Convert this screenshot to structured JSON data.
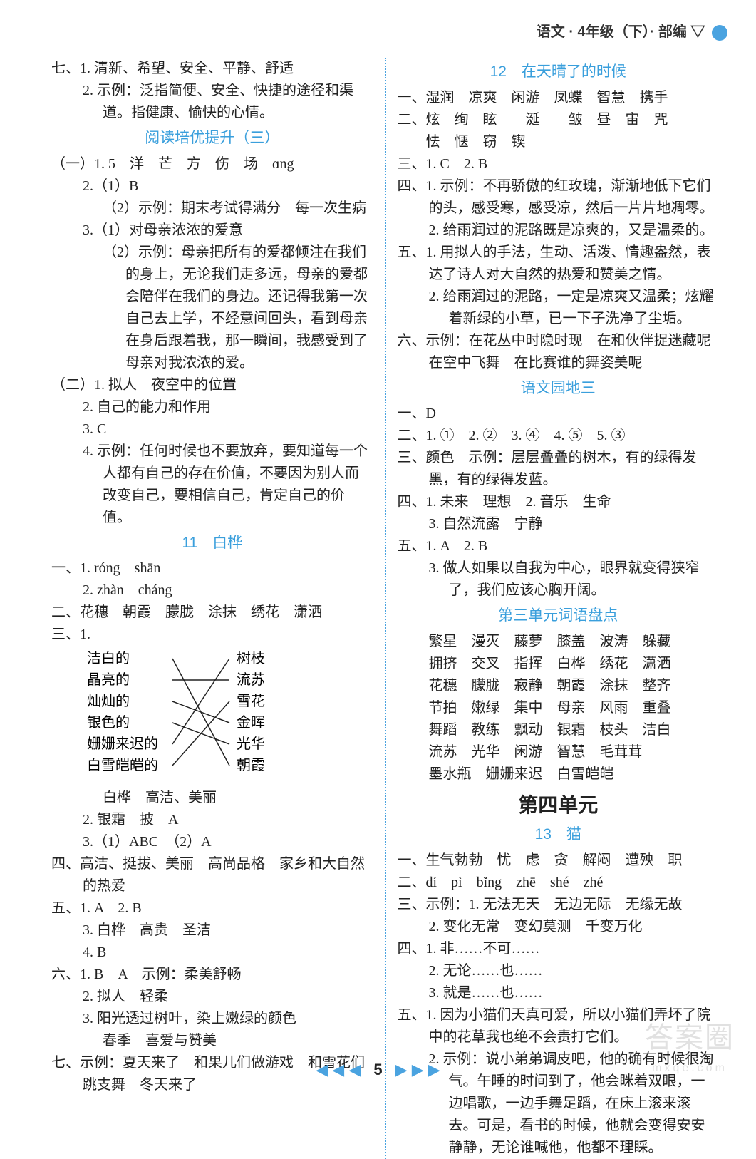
{
  "header": {
    "text": "语文 · 4年级（下）· 部编 ▽"
  },
  "footer": {
    "left": "◀ ◀ ◀",
    "page": "5",
    "right": "▶ ▶ ▶"
  },
  "watermark": {
    "main": "答案圈",
    "sub": "mxqe.com"
  },
  "left": {
    "l1": "七、1. 清新、希望、安全、平静、舒适",
    "l2": "2. 示例：泛指简便、安全、快捷的途径和渠道。指健康、愉快的心情。",
    "t1": "阅读培优提升（三）",
    "l3": "（一）1. 5　洋　芒　方　伤　场　ɑng",
    "l4": "2.（1）B",
    "l5": "（2）示例：期末考试得满分　每一次生病",
    "l6": "3.（1）对母亲浓浓的爱意",
    "l7": "（2）示例：母亲把所有的爱都倾注在我们的身上，无论我们走多远，母亲的爱都会陪伴在我们的身边。还记得我第一次自己去上学，不经意间回头，看到母亲在身后跟着我，那一瞬间，我感受到了母亲对我浓浓的爱。",
    "l8": "（二）1. 拟人　夜空中的位置",
    "l9": "2. 自己的能力和作用",
    "l10": "3. C",
    "l11": "4. 示例：任何时候也不要放弃，要知道每一个人都有自己的存在价值，不要因为别人而改变自己，要相信自己，肯定自己的价值。",
    "t2": "11　白桦",
    "l12": "一、1. róng　shān",
    "l13": "2. zhàn　cháng",
    "l14": "二、花穗　朝霞　朦胧　涂抹　绣花　潇洒",
    "match": {
      "left": [
        "洁白的",
        "晶亮的",
        "灿灿的",
        "银色的",
        "姗姗来迟的",
        "白雪皑皑的"
      ],
      "right": [
        "树枝",
        "流苏",
        "雪花",
        "金晖",
        "光华",
        "朝霞"
      ],
      "edges": [
        [
          0,
          5
        ],
        [
          1,
          1
        ],
        [
          2,
          3
        ],
        [
          3,
          4
        ],
        [
          4,
          0
        ],
        [
          5,
          2
        ]
      ],
      "stroke": "#222222"
    },
    "l15": "三、1.",
    "l16": "白桦　高洁、美丽",
    "l17": "2. 银霜　披　A",
    "l18": "3.（1）ABC　（2）A",
    "l19": "四、高洁、挺拔、美丽　高尚品格　家乡和大自然的热爱",
    "l20": "五、1. A　2. B",
    "l21": "3. 白桦　高贵　圣洁",
    "l22": "4. B",
    "l23": "六、1. B　A　示例：柔美舒畅",
    "l24": "2. 拟人　轻柔",
    "l25": "3. 阳光透过树叶，染上嫩绿的颜色",
    "l26": "春季　喜爱与赞美",
    "l27": "七、示例：夏天来了　和果儿们做游戏　和雪花们跳支舞　冬天来了"
  },
  "right": {
    "t1": "12　在天晴了的时候",
    "r1": "一、湿润　凉爽　闲游　凤蝶　智慧　携手",
    "r2": "二、炫　绚　眩　　涎　　皱　昼　宙　咒",
    "r2b": "　　怯　惬　窃　锲",
    "r3": "三、1. C　2. B",
    "r4": "四、1. 示例：不再骄傲的红玫瑰，渐渐地低下它们的头，感受寒，感受凉，然后一片片地凋零。",
    "r5": "2. 给雨润过的泥路既是凉爽的，又是温柔的。",
    "r6": "五、1. 用拟人的手法，生动、活泼、情趣盎然，表达了诗人对大自然的热爱和赞美之情。",
    "r7": "2. 给雨润过的泥路，一定是凉爽又温柔；炫耀着新绿的小草，已一下子洗净了尘垢。",
    "r8": "六、示例：在花丛中时隐时现　在和伙伴捉迷藏呢　在空中飞舞　在比赛谁的舞姿美呢",
    "t2": "语文园地三",
    "r9": "一、D",
    "r10": "二、1. ①　2. ②　3. ④　4. ⑤　5. ③",
    "r11": "三、颜色　示例：层层叠叠的树木，有的绿得发黑，有的绿得发蓝。",
    "r12": "四、1. 未来　理想　2. 音乐　生命",
    "r13": "3. 自然流露　宁静",
    "r14": "五、1. A　2. B",
    "r15": "3. 做人如果以自我为中心，眼界就变得狭窄了，我们应该心胸开阔。",
    "t3": "第三单元词语盘点",
    "w1": "繁星　漫灭　藤萝　膝盖　波涛　躲藏",
    "w2": "拥挤　交叉　指挥　白桦　绣花　潇洒",
    "w3": "花穗　朦胧　寂静　朝霞　涂抹　整齐",
    "w4": "节拍　嫩绿　集中　母亲　风雨　重叠",
    "w5": "舞蹈　教练　飘动　银霜　枝头　洁白",
    "w6": "流苏　光华　闲游　智慧　毛茸茸",
    "w7": "墨水瓶　姗姗来迟　白雪皑皑",
    "ut": "第四单元",
    "t4": "13　猫",
    "r16": "一、生气勃勃　忧　虑　贪　解闷　遭殃　职",
    "r17": "二、dí　pì　bǐng　zhē　shé　zhé",
    "r18": "三、示例：1. 无法无天　无边无际　无缘无故",
    "r19": "2. 变化无常　变幻莫测　千变万化",
    "r20": "四、1. 非……不可……",
    "r21": "2. 无论……也……",
    "r22": "3. 就是……也……",
    "r23": "五、1. 因为小猫们天真可爱，所以小猫们弄坏了院中的花草我也绝不会责打它们。",
    "r24": "2. 示例：说小弟弟调皮吧，他的确有时候很淘气。午睡的时间到了，他会眯着双眼，一边唱歌，一边手舞足蹈，在床上滚来滚去。可是，看书的时候，他就会变得安安静静，无论谁喊他，他都不理睬。"
  }
}
